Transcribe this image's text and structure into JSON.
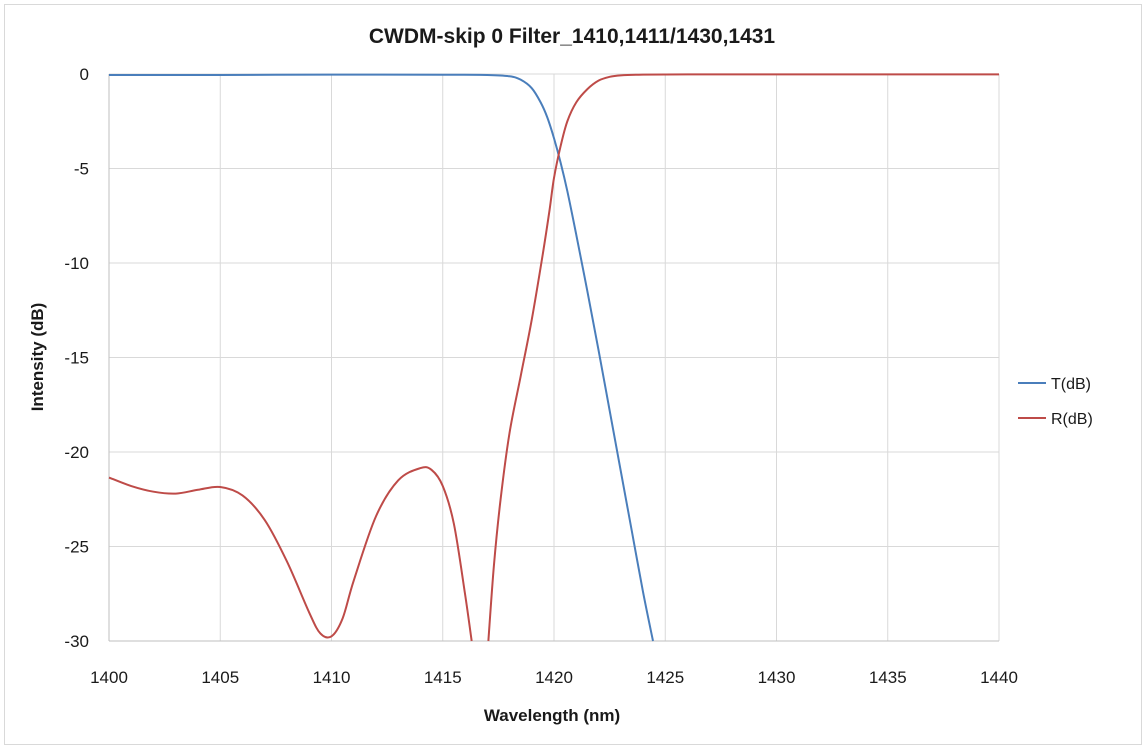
{
  "chart_data": {
    "type": "line",
    "title": "CWDM-skip 0 Filter_1410,1411/1430,1431",
    "xlabel": "Wavelength (nm)",
    "ylabel": "Intensity (dB)",
    "xlim": [
      1400,
      1440
    ],
    "ylim": [
      -30,
      0
    ],
    "x_ticks": [
      1400,
      1405,
      1410,
      1415,
      1420,
      1425,
      1430,
      1435,
      1440
    ],
    "y_ticks": [
      0,
      -5,
      -10,
      -15,
      -20,
      -25,
      -30
    ],
    "grid": true,
    "legend_position": "right",
    "series": [
      {
        "name": "T(dB)",
        "color": "#4a7ebb",
        "x": [
          1400,
          1405,
          1410,
          1415,
          1417,
          1418,
          1418.5,
          1419,
          1419.4,
          1419.7,
          1420,
          1420.3,
          1420.6,
          1421,
          1421.5,
          1422,
          1422.5,
          1423,
          1423.5,
          1424,
          1424.45
        ],
        "y": [
          -0.05,
          -0.05,
          -0.03,
          -0.04,
          -0.05,
          -0.12,
          -0.3,
          -0.75,
          -1.5,
          -2.3,
          -3.4,
          -4.7,
          -6.2,
          -8.5,
          -11.5,
          -14.6,
          -17.8,
          -21.0,
          -24.2,
          -27.4,
          -30.0
        ]
      },
      {
        "name": "R(dB)",
        "color": "#be4b48",
        "segments": [
          {
            "x": [
              1400,
              1401,
              1402,
              1403,
              1404,
              1405,
              1406,
              1407,
              1408,
              1409,
              1409.5,
              1410,
              1410.5,
              1411,
              1412,
              1413,
              1414,
              1414.5,
              1415,
              1415.5,
              1416,
              1416.3
            ],
            "y": [
              -21.35,
              -21.8,
              -22.1,
              -22.2,
              -22.0,
              -21.85,
              -22.3,
              -23.6,
              -25.8,
              -28.5,
              -29.6,
              -29.75,
              -28.8,
              -26.8,
              -23.4,
              -21.5,
              -20.85,
              -20.95,
              -21.8,
              -23.8,
              -27.5,
              -30.0
            ]
          },
          {
            "x": [
              1417.05,
              1417.3,
              1417.6,
              1418,
              1418.5,
              1419,
              1419.5,
              1419.8,
              1420,
              1420.3,
              1420.6,
              1421,
              1421.5,
              1422,
              1422.5,
              1423,
              1424,
              1426,
              1430,
              1435,
              1440
            ],
            "y": [
              -30.0,
              -26.0,
              -22.5,
              -19.0,
              -16.0,
              -13.0,
              -9.5,
              -7.2,
              -5.5,
              -3.8,
              -2.5,
              -1.5,
              -0.8,
              -0.35,
              -0.15,
              -0.07,
              -0.03,
              -0.02,
              -0.02,
              -0.02,
              -0.02
            ]
          }
        ]
      }
    ]
  }
}
